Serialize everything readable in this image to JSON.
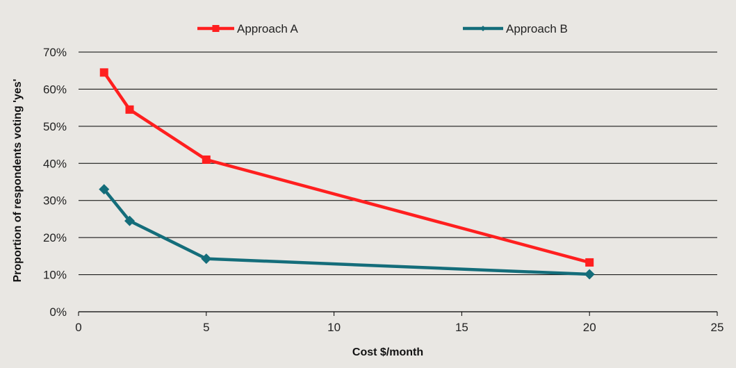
{
  "chart_data": {
    "type": "line",
    "xlabel": "Cost $/month",
    "ylabel": "Proportion of respondents voting 'yes'",
    "xlim": [
      0,
      25
    ],
    "ylim": [
      0,
      0.7
    ],
    "x_ticks": [
      0,
      5,
      10,
      15,
      20,
      25
    ],
    "x_tick_labels": [
      "0",
      "5",
      "10",
      "15",
      "20",
      "25"
    ],
    "y_ticks": [
      0,
      0.1,
      0.2,
      0.3,
      0.4,
      0.5,
      0.6,
      0.7
    ],
    "y_tick_labels": [
      "0%",
      "10%",
      "20%",
      "30%",
      "40%",
      "50%",
      "60%",
      "70%"
    ],
    "grid": "horizontal",
    "legend_position": "top-center",
    "series": [
      {
        "name": "Approach A",
        "color": "#ff1f1f",
        "marker": "square",
        "x": [
          1,
          2,
          5,
          20
        ],
        "y": [
          0.645,
          0.545,
          0.41,
          0.133
        ]
      },
      {
        "name": "Approach B",
        "color": "#146d7a",
        "marker": "diamond",
        "x": [
          1,
          2,
          5,
          20
        ],
        "y": [
          0.33,
          0.245,
          0.143,
          0.101
        ]
      }
    ]
  }
}
